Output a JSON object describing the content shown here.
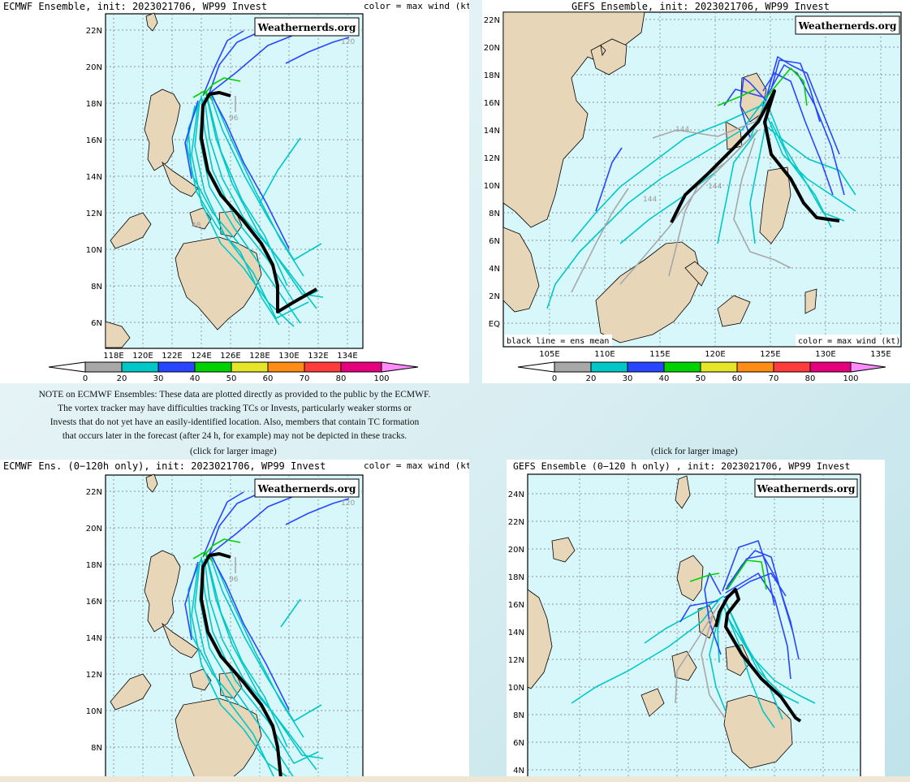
{
  "panels": {
    "ecmwf_full": {
      "title": "ECMWF Ensemble, init: 2023021706, WP99 Invest",
      "color_note": "color = max wind (kt)",
      "watermark": "Weathernerds.org",
      "lat_labels": [
        "22N",
        "20N",
        "18N",
        "16N",
        "14N",
        "12N",
        "10N",
        "8N",
        "6N"
      ],
      "lon_labels": [
        "118E",
        "120E",
        "122E",
        "124E",
        "126E",
        "128E",
        "130E",
        "132E",
        "134E"
      ],
      "annotations": [
        "120",
        "96",
        "48"
      ]
    },
    "gefs_full": {
      "title": "GEFS Ensemble, init: 2023021706, WP99 Invest",
      "watermark": "Weathernerds.org",
      "lat_labels": [
        "22N",
        "20N",
        "18N",
        "16N",
        "14N",
        "12N",
        "10N",
        "8N",
        "6N",
        "4N",
        "2N",
        "EQ"
      ],
      "lon_labels": [
        "105E",
        "110E",
        "115E",
        "120E",
        "125E",
        "130E",
        "135E"
      ],
      "legend_left": "black line = ens mean",
      "legend_right": "color = max wind (kt)",
      "annotations": [
        "144",
        "144",
        "144"
      ]
    },
    "ecmwf_120": {
      "title": "ECMWF Ens. (0−120h only), init: 2023021706, WP99 Invest",
      "color_note": "color = max wind (kt)",
      "watermark": "Weathernerds.org",
      "lat_labels": [
        "22N",
        "20N",
        "18N",
        "16N",
        "14N",
        "12N",
        "10N",
        "8N"
      ],
      "annotations": [
        "120",
        "96"
      ]
    },
    "gefs_120": {
      "title": "GEFS Ensemble (0−120 h only) , init: 2023021706, WP99 Invest",
      "watermark": "Weathernerds.org",
      "lat_labels": [
        "24N",
        "22N",
        "20N",
        "18N",
        "16N",
        "14N",
        "12N",
        "10N",
        "8N",
        "6N",
        "4N"
      ]
    }
  },
  "colorbar": {
    "labels": [
      "0",
      "20",
      "30",
      "40",
      "50",
      "60",
      "70",
      "80",
      "100"
    ],
    "colors": [
      "#a8a8a8",
      "#00c8c8",
      "#2846ff",
      "#00d200",
      "#e6e628",
      "#ff8c14",
      "#ff3c3c",
      "#e6007d"
    ],
    "tip_color": "#ff8cff"
  },
  "note_lines": [
    "NOTE on ECMWF Ensembles: These data are plotted directly as provided to the public by the ECMWF.",
    "The vortex tracker may have difficulties tracking TCs or Invests, particularly weaker storms or",
    "Invests that do not yet have an easily-identified location. Also, members that contain TC formation",
    "that occurs later in the forecast (after 24 h, for example) may not be depicted in these tracks."
  ],
  "click_left": "(click for larger image)",
  "click_right": "(click for larger image)",
  "colors": {
    "ocean": "#d7f7fb",
    "land": "#e8d6b8",
    "mean_track": "#000000"
  }
}
